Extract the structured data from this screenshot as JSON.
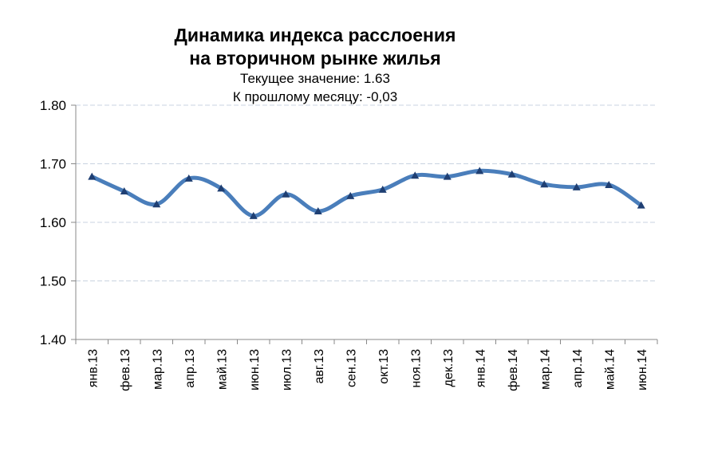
{
  "chart_data": {
    "type": "line",
    "title": "Динамика индекса расслоения на вторичном рынке жилья",
    "title_lines": [
      "Динамика индекса расслоения",
      "на вторичном рынке жилья"
    ],
    "subtitle_lines": [
      "Текущее значение: 1.63",
      "К прошлому месяцу: -0,03"
    ],
    "categories": [
      "янв.13",
      "фев.13",
      "мар.13",
      "апр.13",
      "май.13",
      "июн.13",
      "июл.13",
      "авг.13",
      "сен.13",
      "окт.13",
      "ноя.13",
      "дек.13",
      "янв.14",
      "фев.14",
      "мар.14",
      "апр.14",
      "май.14",
      "июн.14"
    ],
    "values": [
      1.678,
      1.653,
      1.631,
      1.675,
      1.658,
      1.611,
      1.648,
      1.619,
      1.645,
      1.656,
      1.68,
      1.678,
      1.688,
      1.682,
      1.665,
      1.66,
      1.664,
      1.629
    ],
    "ylim": [
      1.4,
      1.8
    ],
    "yticks": [
      "1.40",
      "1.50",
      "1.60",
      "1.70",
      "1.80"
    ],
    "xlabel": "",
    "ylabel": "",
    "grid": true,
    "legend": "none",
    "line_color": "#4a7ebb",
    "marker_color": "#1f3f73"
  }
}
